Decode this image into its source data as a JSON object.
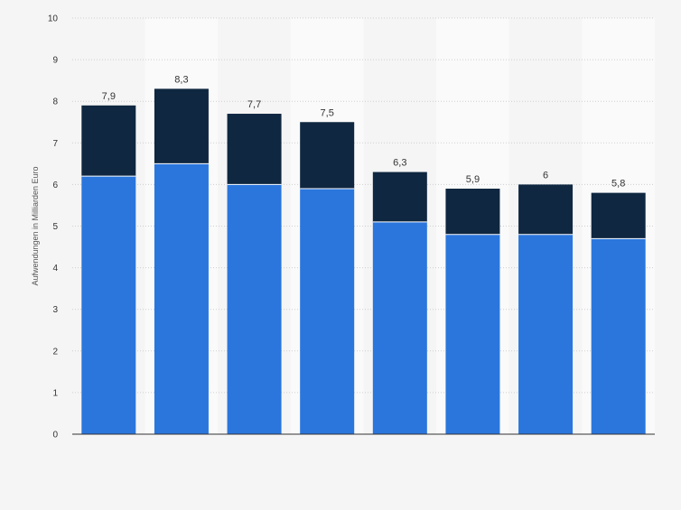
{
  "chart_data": {
    "type": "bar",
    "stacked": true,
    "categories": [
      "",
      "",
      "",
      "",
      "",
      "",
      "",
      ""
    ],
    "series": [
      {
        "values": [
          6.2,
          6.5,
          6.0,
          5.9,
          5.1,
          4.8,
          4.8,
          4.7
        ],
        "color": "#2a76dd"
      },
      {
        "values": [
          1.7,
          1.8,
          1.7,
          1.6,
          1.2,
          1.1,
          1.2,
          1.1
        ],
        "color": "#0f2740"
      }
    ],
    "totals": [
      "7,9",
      "8,3",
      "7,7",
      "7,5",
      "6,3",
      "5,9",
      "6",
      "5,8"
    ],
    "ylabel": "Aufwendungen in Milliarden Euro",
    "ylim": [
      0,
      10
    ],
    "yticks": [
      "0",
      "1",
      "2",
      "3",
      "4",
      "5",
      "6",
      "7",
      "8",
      "9",
      "10"
    ],
    "grid": true,
    "legend": "none"
  },
  "colors": {
    "background": "#f5f5f5",
    "band": "#fafafa",
    "gridline": "#cfcfcf",
    "baseline": "#333333"
  }
}
